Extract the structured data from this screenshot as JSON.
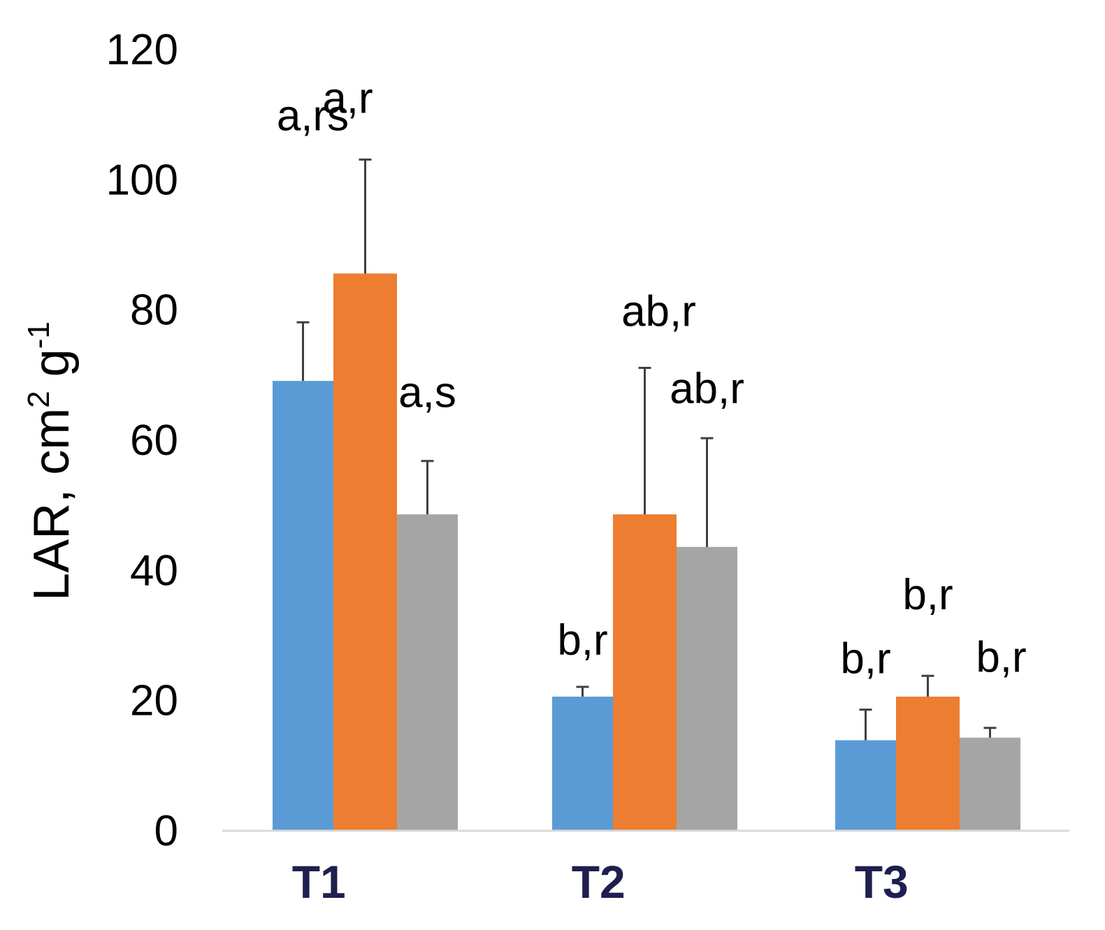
{
  "chart_data": {
    "type": "bar",
    "title": "",
    "xlabel": "",
    "ylabel": {
      "text": "LAR, cm",
      "sup1": "2",
      "mid": " g",
      "sup2": "-1"
    },
    "ylim": [
      0,
      120
    ],
    "yticks": [
      "0",
      "20",
      "40",
      "60",
      "80",
      "100",
      "120"
    ],
    "categories": [
      "T1",
      "T2",
      "T3"
    ],
    "series": [
      {
        "color": "#5b9bd5",
        "values": [
          69,
          20.5,
          13.8
        ],
        "errors": [
          9,
          1.5,
          4.7
        ],
        "labels": [
          "",
          "b,r",
          "b,r"
        ]
      },
      {
        "color": "#ed7d31",
        "values": [
          85.5,
          48.5,
          20.5
        ],
        "errors": [
          17.5,
          22.5,
          3.2
        ],
        "labels": [
          "a,rs",
          "ab,r",
          "b,r"
        ]
      },
      {
        "color": "#a5a5a5",
        "values": [
          48.5,
          43.5,
          14.2
        ],
        "errors": [
          8.2,
          16.7,
          1.5
        ],
        "labels": [
          "a,s",
          "ab,r",
          "b,r"
        ]
      }
    ],
    "extra_labels": [
      {
        "category": 0,
        "series": 0,
        "text": "a,r"
      }
    ],
    "grid": false,
    "legend": "none"
  }
}
